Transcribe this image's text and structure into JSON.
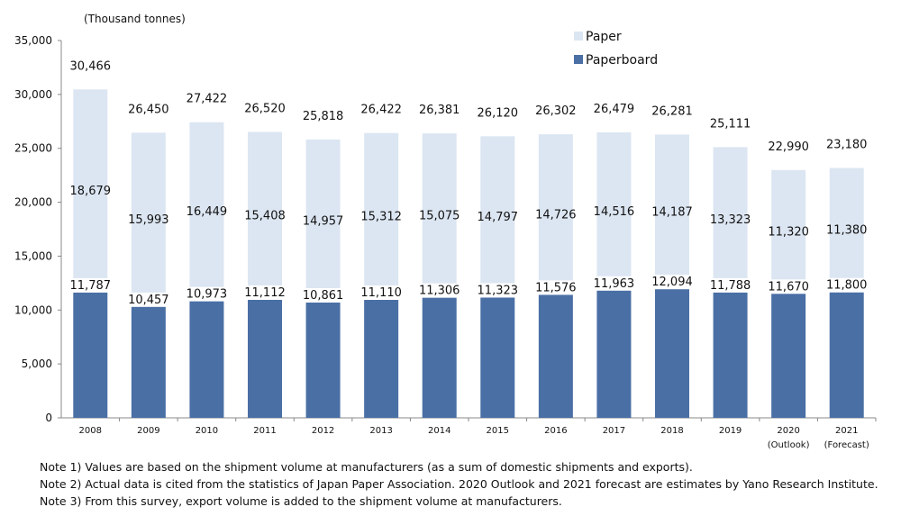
{
  "chart_data": {
    "type": "bar",
    "stacked": true,
    "unit_label": "(Thousand tonnes)",
    "categories": [
      "2008",
      "2009",
      "2010",
      "2011",
      "2012",
      "2013",
      "2014",
      "2015",
      "2016",
      "2017",
      "2018",
      "2019",
      "2020",
      "2021"
    ],
    "category_sublabels": [
      "",
      "",
      "",
      "",
      "",
      "",
      "",
      "",
      "",
      "",
      "",
      "",
      "(Outlook)",
      "(Forecast)"
    ],
    "series": [
      {
        "name": "Paperboard",
        "color": "#4a6fa5",
        "values": [
          11787,
          10457,
          10973,
          11112,
          10861,
          11110,
          11306,
          11323,
          11576,
          11963,
          12094,
          11788,
          11670,
          11800
        ]
      },
      {
        "name": "Paper",
        "color": "#dce6f2",
        "values": [
          18679,
          15993,
          16449,
          15408,
          14957,
          15312,
          15075,
          14797,
          14726,
          14516,
          14187,
          13323,
          11320,
          11380
        ]
      }
    ],
    "totals": [
      30466,
      26450,
      27422,
      26520,
      25818,
      26422,
      26381,
      26120,
      26302,
      26479,
      26281,
      25111,
      22990,
      23180
    ],
    "ylim": [
      0,
      35000
    ],
    "yticks": [
      0,
      5000,
      10000,
      15000,
      20000,
      25000,
      30000,
      35000
    ],
    "ytick_labels": [
      "0",
      "5,000",
      "10,000",
      "15,000",
      "20,000",
      "25,000",
      "30,000",
      "35,000"
    ],
    "legend_position": "top-right",
    "grid": false
  },
  "notes": [
    "Note 1) Values are based on the shipment volume at manufacturers (as a sum of domestic shipments and exports).",
    "Note 2) Actual data is cited from the statistics of Japan Paper Association. 2020 Outlook and 2021 forecast are estimates by Yano Research Institute.",
    "Note 3)  From this survey, export volume is added to the shipment volume at manufacturers."
  ]
}
